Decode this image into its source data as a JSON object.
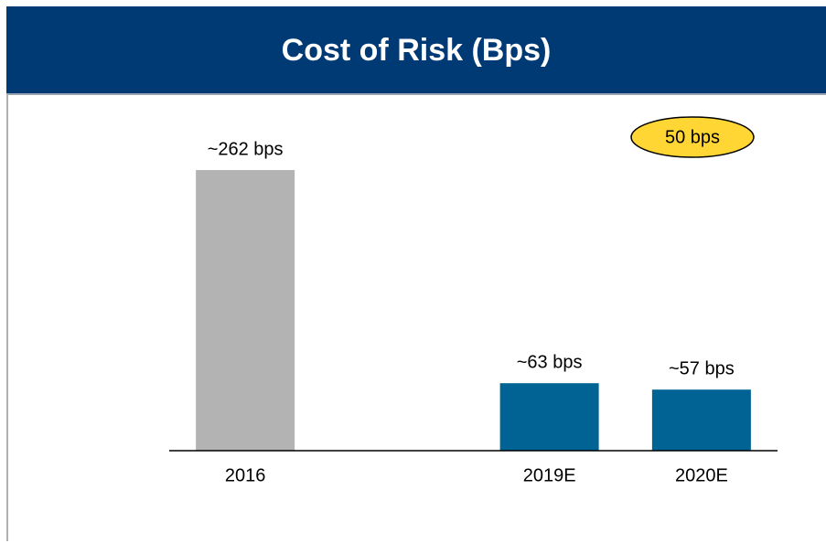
{
  "chart_data": {
    "type": "bar",
    "title": "Cost of Risk (Bps)",
    "categories": [
      "2016",
      null,
      "2019E",
      "2020E"
    ],
    "values": [
      262,
      null,
      63,
      57
    ],
    "value_labels": [
      "~262 bps",
      null,
      "~63 bps",
      "~57 bps"
    ],
    "colors": [
      "#b3b3b3",
      null,
      "#006394",
      "#006394"
    ],
    "ylim": [
      0,
      300
    ],
    "annotation": "50 bps",
    "annotation_color": "#ffd633"
  }
}
